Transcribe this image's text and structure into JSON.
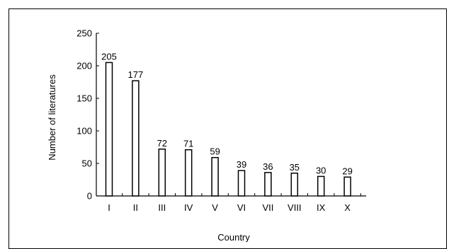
{
  "chart_data": {
    "type": "bar",
    "title": "",
    "xlabel": "Country",
    "ylabel": "Number of literatures",
    "categories": [
      "I",
      "II",
      "III",
      "IV",
      "V",
      "VI",
      "VII",
      "VIII",
      "IX",
      "X"
    ],
    "values": [
      205,
      177,
      72,
      71,
      59,
      39,
      36,
      35,
      30,
      29
    ],
    "data_labels": [
      "205",
      "177",
      "72",
      "71",
      "59",
      "39",
      "36",
      "35",
      "30",
      "29"
    ],
    "ylim": [
      0,
      250
    ],
    "yticks": [
      "0",
      "50",
      "100",
      "150",
      "200",
      "250"
    ],
    "grid": false,
    "bar_fill": "#ffffff",
    "bar_stroke": "#000000"
  }
}
